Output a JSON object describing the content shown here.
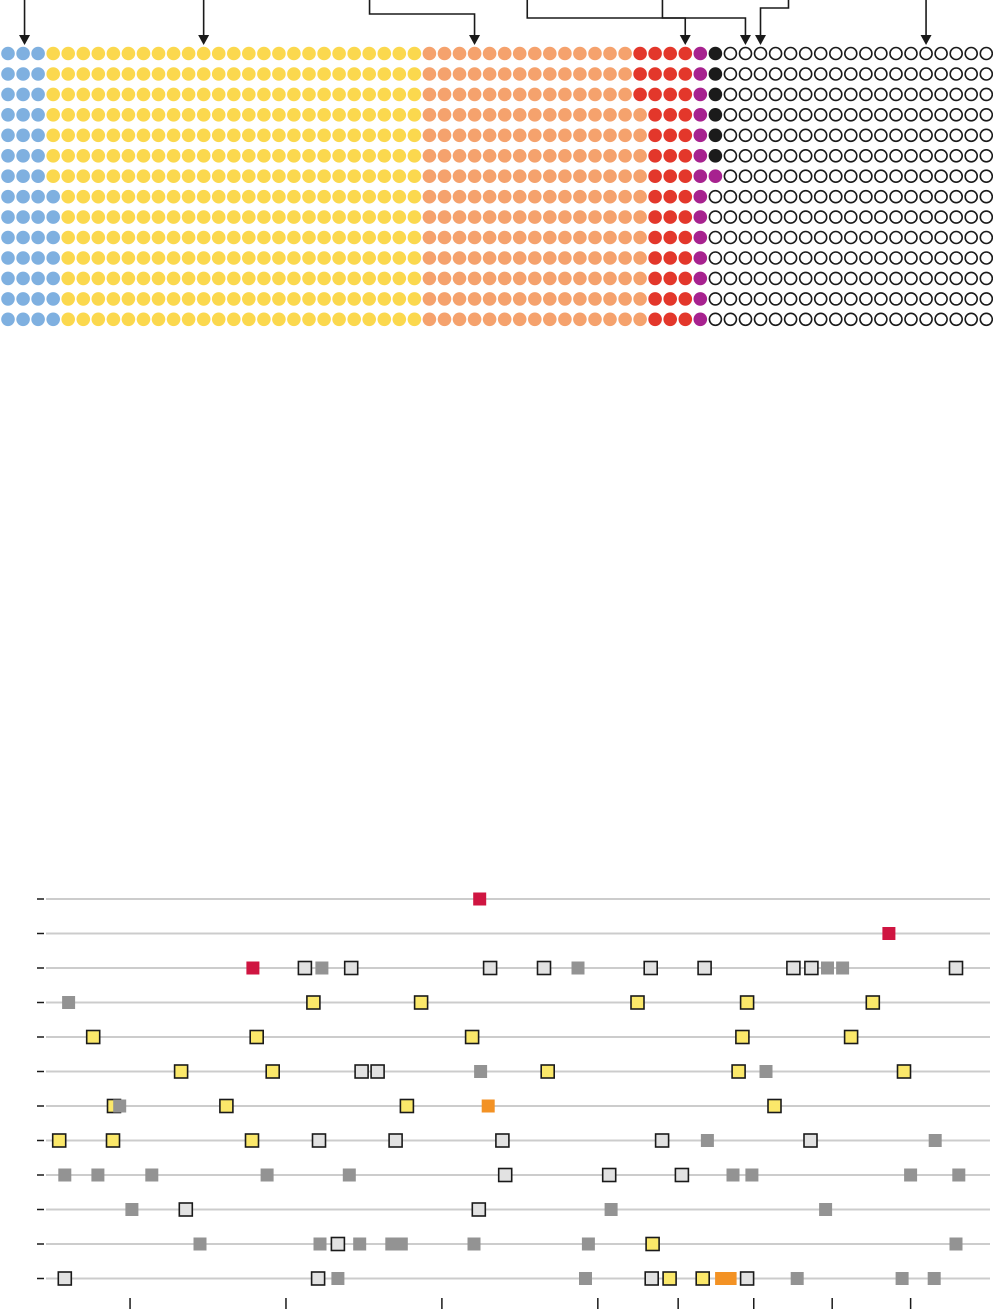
{
  "colors": {
    "blue": "#7fb0e0",
    "yellow": "#fbd84e",
    "orange": "#f5a26d",
    "red": "#e3372b",
    "purple": "#a7228f",
    "black": "#1b1b1b",
    "empty": "#ffffff",
    "sq_red": "#cf1541",
    "sq_orange": "#f39224",
    "sq_yellow": "#fbe86a",
    "sq_light": "#e2e2e2",
    "sq_gray": "#939393",
    "line": "#cccccc",
    "ink": "#1a1a1a"
  },
  "chart_data": [
    {
      "type": "waffle",
      "title": "",
      "categories": [
        "blue",
        "yellow",
        "orange",
        "red",
        "purple",
        "black",
        "empty"
      ],
      "rows": [
        [
          3,
          25,
          14,
          4,
          1,
          1,
          18
        ],
        [
          3,
          25,
          14,
          4,
          1,
          1,
          18
        ],
        [
          3,
          25,
          14,
          4,
          1,
          1,
          18
        ],
        [
          3,
          25,
          15,
          3,
          1,
          1,
          18
        ],
        [
          3,
          25,
          15,
          3,
          1,
          1,
          18
        ],
        [
          3,
          25,
          15,
          3,
          1,
          1,
          18
        ],
        [
          3,
          25,
          15,
          3,
          2,
          0,
          18
        ],
        [
          4,
          24,
          15,
          3,
          1,
          0,
          19
        ],
        [
          4,
          24,
          15,
          3,
          1,
          0,
          19
        ],
        [
          4,
          24,
          15,
          3,
          1,
          0,
          19
        ],
        [
          4,
          24,
          15,
          3,
          1,
          0,
          19
        ],
        [
          4,
          24,
          15,
          3,
          1,
          0,
          19
        ],
        [
          4,
          24,
          15,
          3,
          1,
          0,
          19
        ],
        [
          4,
          24,
          15,
          3,
          1,
          0,
          19
        ]
      ],
      "arrows": [
        {
          "category": "blue",
          "dot_column": 1
        },
        {
          "category": "yellow",
          "dot_column": 13
        },
        {
          "category": "orange",
          "dot_column": 31
        },
        {
          "category": "red",
          "dot_column": 45
        },
        {
          "category": "purple",
          "dot_column": 49
        },
        {
          "category": "black",
          "dot_column": 50
        },
        {
          "category": "empty",
          "dot_column": 61
        }
      ]
    },
    {
      "type": "scatter",
      "title": "",
      "xlabel": "",
      "ylabel": "",
      "xlim": [
        0,
        100
      ],
      "x_ticks": [
        9,
        25.5,
        42,
        58.5,
        67,
        75,
        83.3,
        91.6
      ],
      "rows": [
        {
          "row": 1,
          "points": [
            {
              "x": 46,
              "k": "red"
            }
          ]
        },
        {
          "row": 2,
          "points": [
            {
              "x": 89.3,
              "k": "red"
            }
          ]
        },
        {
          "row": 3,
          "points": [
            {
              "x": 22,
              "k": "red"
            },
            {
              "x": 27.5,
              "k": "light"
            },
            {
              "x": 29.3,
              "k": "gray"
            },
            {
              "x": 32.4,
              "k": "light"
            },
            {
              "x": 47.1,
              "k": "light"
            },
            {
              "x": 52.8,
              "k": "light"
            },
            {
              "x": 56.4,
              "k": "gray"
            },
            {
              "x": 64.1,
              "k": "light"
            },
            {
              "x": 69.8,
              "k": "light"
            },
            {
              "x": 79.2,
              "k": "light"
            },
            {
              "x": 81.1,
              "k": "light"
            },
            {
              "x": 82.8,
              "k": "gray"
            },
            {
              "x": 84.4,
              "k": "gray"
            },
            {
              "x": 96.4,
              "k": "light"
            }
          ]
        },
        {
          "row": 4,
          "points": [
            {
              "x": 2.5,
              "k": "gray"
            },
            {
              "x": 28.4,
              "k": "yellow"
            },
            {
              "x": 39.8,
              "k": "yellow"
            },
            {
              "x": 62.7,
              "k": "yellow"
            },
            {
              "x": 74.3,
              "k": "yellow"
            },
            {
              "x": 87.6,
              "k": "yellow"
            }
          ]
        },
        {
          "row": 5,
          "points": [
            {
              "x": 5.1,
              "k": "yellow"
            },
            {
              "x": 22.4,
              "k": "yellow"
            },
            {
              "x": 45.2,
              "k": "yellow"
            },
            {
              "x": 73.8,
              "k": "yellow"
            },
            {
              "x": 85.3,
              "k": "yellow"
            }
          ]
        },
        {
          "row": 6,
          "points": [
            {
              "x": 14.4,
              "k": "yellow"
            },
            {
              "x": 24.1,
              "k": "yellow"
            },
            {
              "x": 33.5,
              "k": "light"
            },
            {
              "x": 35.2,
              "k": "light"
            },
            {
              "x": 46.1,
              "k": "gray"
            },
            {
              "x": 53.2,
              "k": "yellow"
            },
            {
              "x": 73.4,
              "k": "yellow"
            },
            {
              "x": 76.3,
              "k": "gray"
            },
            {
              "x": 90.9,
              "k": "yellow"
            }
          ]
        },
        {
          "row": 7,
          "points": [
            {
              "x": 7.3,
              "k": "yellow"
            },
            {
              "x": 7.9,
              "k": "gray"
            },
            {
              "x": 19.2,
              "k": "yellow"
            },
            {
              "x": 38.3,
              "k": "yellow"
            },
            {
              "x": 46.9,
              "k": "orange"
            },
            {
              "x": 77.2,
              "k": "yellow"
            }
          ]
        },
        {
          "row": 8,
          "points": [
            {
              "x": 1.5,
              "k": "yellow"
            },
            {
              "x": 7.2,
              "k": "yellow"
            },
            {
              "x": 21.9,
              "k": "yellow"
            },
            {
              "x": 29,
              "k": "light"
            },
            {
              "x": 37.1,
              "k": "light"
            },
            {
              "x": 48.4,
              "k": "light"
            },
            {
              "x": 65.3,
              "k": "light"
            },
            {
              "x": 70.1,
              "k": "gray"
            },
            {
              "x": 81,
              "k": "light"
            },
            {
              "x": 94.2,
              "k": "gray"
            }
          ]
        },
        {
          "row": 9,
          "points": [
            {
              "x": 2.1,
              "k": "gray"
            },
            {
              "x": 5.6,
              "k": "gray"
            },
            {
              "x": 11.3,
              "k": "gray"
            },
            {
              "x": 23.5,
              "k": "gray"
            },
            {
              "x": 32.2,
              "k": "gray"
            },
            {
              "x": 48.7,
              "k": "light"
            },
            {
              "x": 59.7,
              "k": "light"
            },
            {
              "x": 67.4,
              "k": "light"
            },
            {
              "x": 72.8,
              "k": "gray"
            },
            {
              "x": 74.8,
              "k": "gray"
            },
            {
              "x": 91.6,
              "k": "gray"
            },
            {
              "x": 96.7,
              "k": "gray"
            }
          ]
        },
        {
          "row": 10,
          "points": [
            {
              "x": 9.2,
              "k": "gray"
            },
            {
              "x": 14.9,
              "k": "light"
            },
            {
              "x": 45.9,
              "k": "light"
            },
            {
              "x": 59.9,
              "k": "gray"
            },
            {
              "x": 82.6,
              "k": "gray"
            }
          ]
        },
        {
          "row": 11,
          "points": [
            {
              "x": 16.4,
              "k": "gray"
            },
            {
              "x": 29.1,
              "k": "gray"
            },
            {
              "x": 31,
              "k": "light"
            },
            {
              "x": 33.3,
              "k": "gray"
            },
            {
              "x": 36.7,
              "k": "gray"
            },
            {
              "x": 37.7,
              "k": "gray"
            },
            {
              "x": 45.4,
              "k": "gray"
            },
            {
              "x": 57.5,
              "k": "gray"
            },
            {
              "x": 64.3,
              "k": "yellow"
            },
            {
              "x": 96.4,
              "k": "gray"
            }
          ]
        },
        {
          "row": 12,
          "points": [
            {
              "x": 2.1,
              "k": "light"
            },
            {
              "x": 28.9,
              "k": "light"
            },
            {
              "x": 31,
              "k": "gray"
            },
            {
              "x": 57.2,
              "k": "gray"
            },
            {
              "x": 64.2,
              "k": "light"
            },
            {
              "x": 66.1,
              "k": "yellow"
            },
            {
              "x": 69.6,
              "k": "yellow"
            },
            {
              "x": 71.6,
              "k": "orange"
            },
            {
              "x": 72.5,
              "k": "orange"
            },
            {
              "x": 74.3,
              "k": "light"
            },
            {
              "x": 79.6,
              "k": "gray"
            },
            {
              "x": 90.7,
              "k": "gray"
            },
            {
              "x": 94.1,
              "k": "gray"
            }
          ]
        }
      ]
    }
  ]
}
